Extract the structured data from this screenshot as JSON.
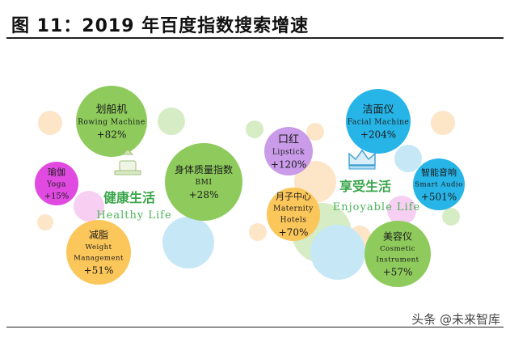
{
  "header": {
    "title": "图 11：2019 年百度指数搜索增速"
  },
  "watermark": {
    "text": "头条 @未来智库"
  },
  "colors": {
    "green": "#8ecb5c",
    "orange": "#fbc65a",
    "magenta": "#e04ae0",
    "lavender": "#c99be8",
    "blue": "#27b5e8",
    "category_green": "#3aa64a",
    "pale_peach": "#fde5c8",
    "pale_green": "#d6ecc4",
    "pale_blue": "#c6e8f6",
    "pale_pink": "#f6cff2"
  },
  "chart_data": {
    "type": "bubble",
    "title": "2019 年百度指数搜索增速",
    "categories": [
      {
        "name": "健康生活",
        "subtitle": "Healthy Life",
        "icon": "weighing-scale-icon",
        "items": [
          {
            "name": "划船机",
            "english": [
              "Rowing Machine"
            ],
            "value_label": "+82%",
            "value": 82,
            "color": "#8ecb5c"
          },
          {
            "name": "瑜伽",
            "english": [
              "Yoga"
            ],
            "value_label": "+15%",
            "value": 15,
            "color": "#e04ae0"
          },
          {
            "name": "身体质量指数",
            "english": [
              "BMI"
            ],
            "value_label": "+28%",
            "value": 28,
            "color": "#8ecb5c"
          },
          {
            "name": "减脂",
            "english": [
              "Weight",
              "Management"
            ],
            "value_label": "+51%",
            "value": 51,
            "color": "#fbc65a"
          }
        ]
      },
      {
        "name": "享受生活",
        "subtitle": "Enjoyable Life",
        "icon": "crown-icon",
        "items": [
          {
            "name": "口红",
            "english": [
              "Lipstick"
            ],
            "value_label": "+120%",
            "value": 120,
            "color": "#c99be8"
          },
          {
            "name": "洁面仪",
            "english": [
              "Facial Machine"
            ],
            "value_label": "+204%",
            "value": 204,
            "color": "#27b5e8"
          },
          {
            "name": "智能音响",
            "english": [
              "Smart Audio"
            ],
            "value_label": "+501%",
            "value": 501,
            "color": "#27b5e8"
          },
          {
            "name": "月子中心",
            "english": [
              "Maternity",
              "Hotels"
            ],
            "value_label": "+70%",
            "value": 70,
            "color": "#fbc65a"
          },
          {
            "name": "美容仪",
            "english": [
              "Cosmetic",
              "Instrument"
            ],
            "value_label": "+57%",
            "value": 57,
            "color": "#8ecb5c"
          }
        ]
      }
    ]
  }
}
